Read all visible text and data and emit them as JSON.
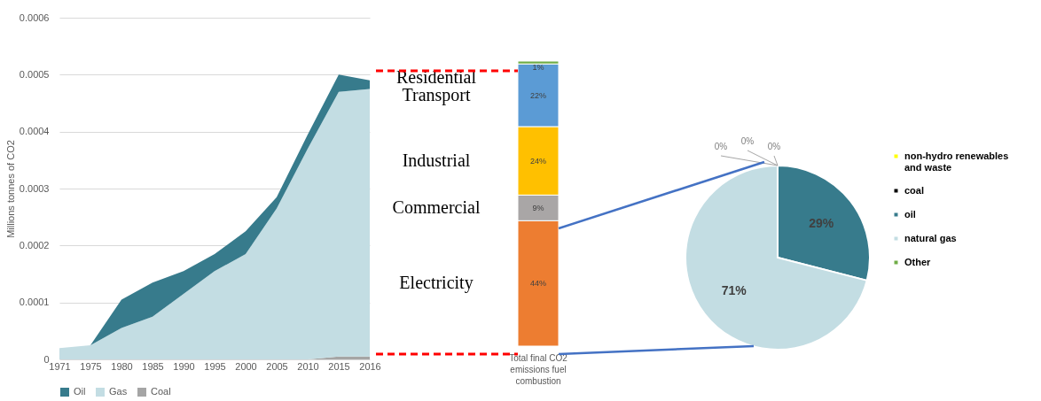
{
  "chart_data": [
    {
      "type": "area",
      "stacked": true,
      "ylabel": "Millions tonnes of CO2",
      "categories": [
        "1971",
        "1975",
        "1980",
        "1985",
        "1990",
        "1995",
        "2000",
        "2005",
        "2010",
        "2015",
        "2016"
      ],
      "ylim": [
        0,
        0.0006
      ],
      "yticks": [
        0,
        0.0001,
        0.0002,
        0.0003,
        0.0004,
        0.0005,
        0.0006
      ],
      "grid": "y",
      "legend": "bottom",
      "series": [
        {
          "name": "Coal",
          "color": "#a5a5a5",
          "values": [
            0,
            0,
            0,
            0,
            0,
            0,
            0,
            0,
            0,
            5e-06,
            5e-06
          ]
        },
        {
          "name": "Gas",
          "color": "#c3dde3",
          "values": [
            2e-05,
            2.5e-05,
            5.5e-05,
            7.5e-05,
            0.000115,
            0.000155,
            0.000185,
            0.000265,
            0.00037,
            0.000465,
            0.00047
          ]
        },
        {
          "name": "Oil",
          "color": "#377b8c",
          "values": [
            0,
            0,
            5e-05,
            6e-05,
            4e-05,
            3e-05,
            4e-05,
            2e-05,
            2.5e-05,
            3e-05,
            1.5e-05
          ]
        }
      ]
    },
    {
      "type": "bar",
      "stacked": true,
      "categories": [
        "Total final CO2 emissions fuel combustion"
      ],
      "series": [
        {
          "name": "Electricity",
          "color": "#ed7d31",
          "values": [
            44
          ],
          "value_labels": [
            "44%"
          ]
        },
        {
          "name": "Commercial",
          "color": "#a9a6a6",
          "values": [
            9
          ],
          "value_labels": [
            "9%"
          ]
        },
        {
          "name": "Industrial",
          "color": "#ffc000",
          "values": [
            24
          ],
          "value_labels": [
            "24%"
          ]
        },
        {
          "name": "Transport",
          "color": "#5b9bd5",
          "values": [
            22
          ],
          "value_labels": [
            "22%"
          ]
        },
        {
          "name": "Residential",
          "color": "#70ad47",
          "values": [
            1
          ],
          "value_labels": [
            "1%"
          ]
        }
      ]
    },
    {
      "type": "pie",
      "categories": [
        "non-hydro renewables and waste",
        "coal",
        "oil",
        "natural gas",
        "Other"
      ],
      "values": [
        0,
        0,
        29,
        71,
        0
      ],
      "colors": [
        "#ffff00",
        "#000000",
        "#377b8c",
        "#c3dde3",
        "#70ad47"
      ],
      "value_labels": [
        "0%",
        "0%",
        "29%",
        "71%",
        "0%"
      ],
      "legend": "right"
    }
  ]
}
